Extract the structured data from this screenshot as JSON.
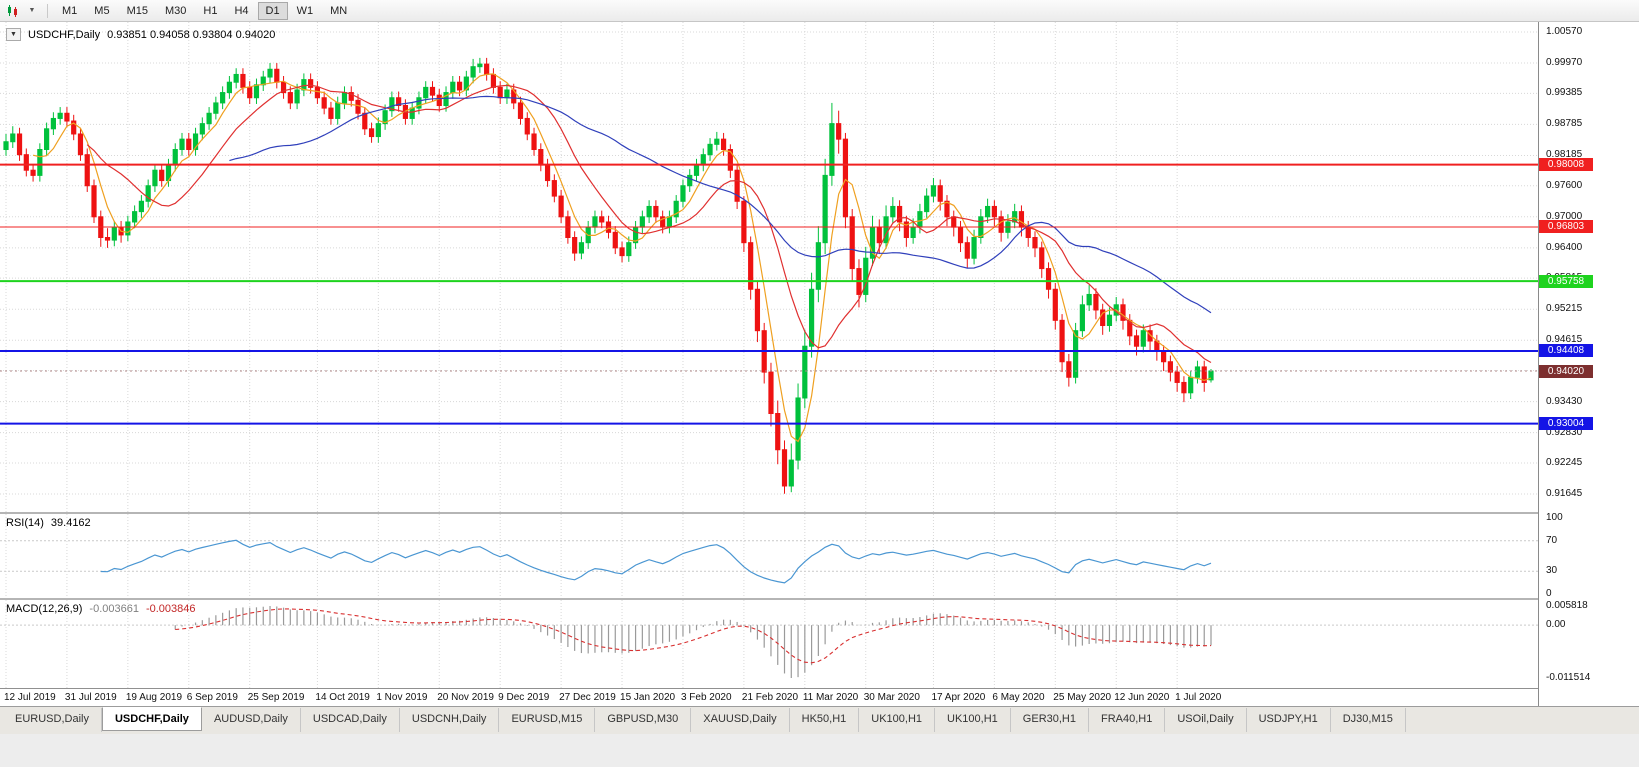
{
  "toolbar": {
    "timeframes": [
      "M1",
      "M5",
      "M15",
      "M30",
      "H1",
      "H4",
      "D1",
      "W1",
      "MN"
    ],
    "active_timeframe": "D1"
  },
  "chart": {
    "title": "USDCHF,Daily",
    "ohlc_text": "0.93851 0.94058 0.93804 0.94020"
  },
  "indicators": {
    "rsi": {
      "label": "RSI(14)",
      "value": "39.4162",
      "axis": [
        "100",
        "70",
        "30",
        "0"
      ],
      "line_color": "#4a96d2"
    },
    "macd": {
      "label": "MACD(12,26,9)",
      "value_main": "-0.003661",
      "value_signal": "-0.003846",
      "axis_max": "0.005818",
      "axis_zero": "0.00",
      "axis_min": "-0.011514",
      "hist_color": "#9a9a9a",
      "signal_color": "#d83030"
    }
  },
  "price_axis_ticks": [
    "1.00570",
    "0.99970",
    "0.99385",
    "0.98785",
    "0.98185",
    "0.97600",
    "0.97000",
    "0.96400",
    "0.95815",
    "0.95215",
    "0.94615",
    "0.94030",
    "0.93430",
    "0.92830",
    "0.92245",
    "0.91645"
  ],
  "levels": [
    {
      "label": "0.98008",
      "price": 0.98008,
      "color": "#f02020",
      "width": 2
    },
    {
      "label": "0.96803",
      "price": 0.96803,
      "color": "#f02020",
      "width": 1
    },
    {
      "label": "0.95758",
      "price": 0.95758,
      "color": "#1ed31e",
      "width": 2
    },
    {
      "label": "0.94408",
      "price": 0.94408,
      "color": "#1414e6",
      "width": 2
    },
    {
      "label": "0.93004",
      "price": 0.93004,
      "color": "#1414e6",
      "width": 2
    }
  ],
  "current_price": {
    "label": "0.94020",
    "price": 0.9402,
    "box_color": "#7d2f2f"
  },
  "date_ticks": [
    "12 Jul 2019",
    "31 Jul 2019",
    "19 Aug 2019",
    "6 Sep 2019",
    "25 Sep 2019",
    "14 Oct 2019",
    "1 Nov 2019",
    "20 Nov 2019",
    "9 Dec 2019",
    "27 Dec 2019",
    "15 Jan 2020",
    "3 Feb 2020",
    "21 Feb 2020",
    "11 Mar 2020",
    "30 Mar 2020",
    "17 Apr 2020",
    "6 May 2020",
    "25 May 2020",
    "12 Jun 2020",
    "1 Jul 2020"
  ],
  "tabs": [
    "EURUSD,Daily",
    "USDCHF,Daily",
    "AUDUSD,Daily",
    "USDCAD,Daily",
    "USDCNH,Daily",
    "EURUSD,M15",
    "GBPUSD,M30",
    "XAUUSD,Daily",
    "HK50,H1",
    "UK100,H1",
    "UK100,H1",
    "GER30,H1",
    "FRA40,H1",
    "USOil,Daily",
    "USDJPY,H1",
    "DJ30,M15"
  ],
  "active_tab": "USDCHF,Daily",
  "colors": {
    "bull": "#00c13c",
    "bear": "#ee1212",
    "grid": "#d8d8d8"
  },
  "chart_data": {
    "type": "candlestick",
    "symbol": "USDCHF",
    "timeframe": "Daily",
    "ylim": [
      0.91645,
      1.0057
    ],
    "x_range": [
      "12 Jul 2019",
      "10 Jul 2020"
    ],
    "moving_averages": [
      {
        "period": 5,
        "color": "#efa020"
      },
      {
        "period": 13,
        "color": "#e03030"
      },
      {
        "period": 34,
        "color": "#3040bb"
      }
    ],
    "candles": [
      [
        0.983,
        0.986,
        0.9818,
        0.9845
      ],
      [
        0.9845,
        0.9875,
        0.9833,
        0.986
      ],
      [
        0.986,
        0.9872,
        0.9808,
        0.982
      ],
      [
        0.982,
        0.9832,
        0.9778,
        0.979
      ],
      [
        0.979,
        0.9802,
        0.9768,
        0.978
      ],
      [
        0.978,
        0.9842,
        0.9768,
        0.983
      ],
      [
        0.983,
        0.9882,
        0.9818,
        0.987
      ],
      [
        0.987,
        0.9902,
        0.9858,
        0.989
      ],
      [
        0.989,
        0.9912,
        0.9878,
        0.99
      ],
      [
        0.99,
        0.9912,
        0.9873,
        0.9885
      ],
      [
        0.9885,
        0.9897,
        0.9848,
        0.986
      ],
      [
        0.986,
        0.9872,
        0.9808,
        0.982
      ],
      [
        0.982,
        0.9832,
        0.9748,
        0.976
      ],
      [
        0.976,
        0.9772,
        0.9688,
        0.97
      ],
      [
        0.97,
        0.9712,
        0.9642,
        0.966
      ],
      [
        0.966,
        0.9678,
        0.964,
        0.9655
      ],
      [
        0.9655,
        0.9692,
        0.9643,
        0.968
      ],
      [
        0.968,
        0.9692,
        0.965,
        0.9665
      ],
      [
        0.9665,
        0.9702,
        0.9653,
        0.969
      ],
      [
        0.969,
        0.9722,
        0.9678,
        0.971
      ],
      [
        0.971,
        0.9742,
        0.9698,
        0.973
      ],
      [
        0.973,
        0.9772,
        0.9718,
        0.976
      ],
      [
        0.976,
        0.9802,
        0.9748,
        0.979
      ],
      [
        0.979,
        0.9802,
        0.9758,
        0.977
      ],
      [
        0.977,
        0.9812,
        0.9758,
        0.98
      ],
      [
        0.98,
        0.9842,
        0.9788,
        0.983
      ],
      [
        0.983,
        0.9862,
        0.9818,
        0.985
      ],
      [
        0.985,
        0.9862,
        0.9818,
        0.983
      ],
      [
        0.983,
        0.9872,
        0.9818,
        0.986
      ],
      [
        0.986,
        0.9892,
        0.9848,
        0.988
      ],
      [
        0.988,
        0.9912,
        0.9868,
        0.99
      ],
      [
        0.99,
        0.9932,
        0.9888,
        0.992
      ],
      [
        0.992,
        0.9952,
        0.9908,
        0.994
      ],
      [
        0.994,
        0.9972,
        0.9928,
        0.996
      ],
      [
        0.996,
        0.9987,
        0.9948,
        0.9975
      ],
      [
        0.9975,
        0.9987,
        0.9938,
        0.995
      ],
      [
        0.995,
        0.9962,
        0.9918,
        0.993
      ],
      [
        0.993,
        0.9967,
        0.9918,
        0.9955
      ],
      [
        0.9955,
        0.9982,
        0.9943,
        0.997
      ],
      [
        0.997,
        0.9997,
        0.9958,
        0.9985
      ],
      [
        0.9985,
        0.9997,
        0.9948,
        0.996
      ],
      [
        0.996,
        0.9972,
        0.9928,
        0.994
      ],
      [
        0.994,
        0.9952,
        0.9908,
        0.992
      ],
      [
        0.992,
        0.9957,
        0.9908,
        0.9945
      ],
      [
        0.9945,
        0.9977,
        0.9933,
        0.9965
      ],
      [
        0.9965,
        0.9977,
        0.9938,
        0.995
      ],
      [
        0.995,
        0.9962,
        0.9918,
        0.993
      ],
      [
        0.993,
        0.9942,
        0.9898,
        0.991
      ],
      [
        0.991,
        0.9922,
        0.9878,
        0.989
      ],
      [
        0.989,
        0.9932,
        0.9878,
        0.992
      ],
      [
        0.992,
        0.9952,
        0.9908,
        0.994
      ],
      [
        0.994,
        0.9952,
        0.9913,
        0.9925
      ],
      [
        0.9925,
        0.9937,
        0.9888,
        0.99
      ],
      [
        0.99,
        0.9912,
        0.9858,
        0.987
      ],
      [
        0.987,
        0.9882,
        0.9843,
        0.9855
      ],
      [
        0.9855,
        0.9892,
        0.9843,
        0.988
      ],
      [
        0.988,
        0.9917,
        0.9868,
        0.9905
      ],
      [
        0.9905,
        0.9942,
        0.9893,
        0.993
      ],
      [
        0.993,
        0.9942,
        0.9903,
        0.9915
      ],
      [
        0.9915,
        0.9927,
        0.9878,
        0.989
      ],
      [
        0.989,
        0.9922,
        0.9878,
        0.991
      ],
      [
        0.991,
        0.9942,
        0.9898,
        0.993
      ],
      [
        0.993,
        0.9962,
        0.9918,
        0.995
      ],
      [
        0.995,
        0.9962,
        0.9923,
        0.9935
      ],
      [
        0.9935,
        0.9947,
        0.9903,
        0.9915
      ],
      [
        0.9915,
        0.9952,
        0.9903,
        0.994
      ],
      [
        0.994,
        0.9972,
        0.9928,
        0.996
      ],
      [
        0.996,
        0.9972,
        0.9933,
        0.9945
      ],
      [
        0.9945,
        0.9982,
        0.9933,
        0.997
      ],
      [
        0.997,
        1.0005,
        0.9958,
        0.999
      ],
      [
        0.999,
        1.0007,
        0.9978,
        0.9995
      ],
      [
        0.9995,
        1.0007,
        0.9963,
        0.9975
      ],
      [
        0.9975,
        0.9987,
        0.9938,
        0.995
      ],
      [
        0.995,
        0.9962,
        0.9918,
        0.993
      ],
      [
        0.993,
        0.9957,
        0.9918,
        0.9945
      ],
      [
        0.9945,
        0.9957,
        0.9908,
        0.992
      ],
      [
        0.992,
        0.9932,
        0.9878,
        0.989
      ],
      [
        0.989,
        0.9902,
        0.9848,
        0.986
      ],
      [
        0.986,
        0.9872,
        0.9818,
        0.983
      ],
      [
        0.983,
        0.9842,
        0.9788,
        0.98
      ],
      [
        0.98,
        0.9812,
        0.9758,
        0.977
      ],
      [
        0.977,
        0.9782,
        0.9728,
        0.974
      ],
      [
        0.974,
        0.9752,
        0.9688,
        0.97
      ],
      [
        0.97,
        0.9712,
        0.9648,
        0.966
      ],
      [
        0.966,
        0.9672,
        0.9615,
        0.963
      ],
      [
        0.963,
        0.9662,
        0.9618,
        0.965
      ],
      [
        0.965,
        0.9692,
        0.9638,
        0.968
      ],
      [
        0.968,
        0.9712,
        0.9668,
        0.97
      ],
      [
        0.97,
        0.9712,
        0.9678,
        0.969
      ],
      [
        0.969,
        0.9702,
        0.9658,
        0.967
      ],
      [
        0.967,
        0.9682,
        0.9628,
        0.964
      ],
      [
        0.964,
        0.9652,
        0.9612,
        0.9625
      ],
      [
        0.9625,
        0.9662,
        0.9613,
        0.965
      ],
      [
        0.965,
        0.9692,
        0.9638,
        0.968
      ],
      [
        0.968,
        0.9712,
        0.9668,
        0.97
      ],
      [
        0.97,
        0.9732,
        0.9688,
        0.972
      ],
      [
        0.972,
        0.9732,
        0.9688,
        0.97
      ],
      [
        0.97,
        0.9712,
        0.9668,
        0.968
      ],
      [
        0.968,
        0.9712,
        0.9668,
        0.97
      ],
      [
        0.97,
        0.9742,
        0.9688,
        0.973
      ],
      [
        0.973,
        0.9772,
        0.9718,
        0.976
      ],
      [
        0.976,
        0.9792,
        0.9748,
        0.978
      ],
      [
        0.978,
        0.9812,
        0.9768,
        0.98
      ],
      [
        0.98,
        0.9832,
        0.9788,
        0.982
      ],
      [
        0.982,
        0.9852,
        0.9808,
        0.984
      ],
      [
        0.984,
        0.9864,
        0.9828,
        0.985
      ],
      [
        0.985,
        0.9862,
        0.9818,
        0.983
      ],
      [
        0.983,
        0.984,
        0.9775,
        0.979
      ],
      [
        0.979,
        0.98,
        0.9715,
        0.973
      ],
      [
        0.973,
        0.974,
        0.9632,
        0.965
      ],
      [
        0.965,
        0.9662,
        0.954,
        0.956
      ],
      [
        0.956,
        0.9575,
        0.9458,
        0.948
      ],
      [
        0.948,
        0.9495,
        0.9378,
        0.94
      ],
      [
        0.94,
        0.9418,
        0.9295,
        0.932
      ],
      [
        0.932,
        0.9345,
        0.9222,
        0.925
      ],
      [
        0.925,
        0.9268,
        0.9165,
        0.918
      ],
      [
        0.918,
        0.9262,
        0.9168,
        0.923
      ],
      [
        0.923,
        0.9378,
        0.9212,
        0.935
      ],
      [
        0.935,
        0.9482,
        0.933,
        0.945
      ],
      [
        0.945,
        0.9592,
        0.9428,
        0.956
      ],
      [
        0.956,
        0.9682,
        0.9535,
        0.965
      ],
      [
        0.965,
        0.9812,
        0.9628,
        0.978
      ],
      [
        0.978,
        0.992,
        0.976,
        0.988
      ],
      [
        0.988,
        0.9905,
        0.9822,
        0.985
      ],
      [
        0.985,
        0.9862,
        0.9678,
        0.97
      ],
      [
        0.97,
        0.9715,
        0.9575,
        0.96
      ],
      [
        0.96,
        0.9618,
        0.9525,
        0.955
      ],
      [
        0.955,
        0.9642,
        0.9535,
        0.962
      ],
      [
        0.962,
        0.9702,
        0.9605,
        0.968
      ],
      [
        0.968,
        0.9695,
        0.9628,
        0.965
      ],
      [
        0.965,
        0.9722,
        0.9638,
        0.97
      ],
      [
        0.97,
        0.9738,
        0.9688,
        0.972
      ],
      [
        0.972,
        0.9732,
        0.9672,
        0.969
      ],
      [
        0.969,
        0.9702,
        0.9642,
        0.966
      ],
      [
        0.966,
        0.9697,
        0.9648,
        0.968
      ],
      [
        0.968,
        0.9725,
        0.9668,
        0.971
      ],
      [
        0.971,
        0.9755,
        0.9698,
        0.974
      ],
      [
        0.974,
        0.9775,
        0.9728,
        0.976
      ],
      [
        0.976,
        0.9772,
        0.9712,
        0.973
      ],
      [
        0.973,
        0.9742,
        0.9682,
        0.97
      ],
      [
        0.97,
        0.9712,
        0.9662,
        0.968
      ],
      [
        0.968,
        0.9692,
        0.9632,
        0.965
      ],
      [
        0.965,
        0.9662,
        0.9602,
        0.962
      ],
      [
        0.962,
        0.9675,
        0.9608,
        0.966
      ],
      [
        0.966,
        0.9715,
        0.9648,
        0.97
      ],
      [
        0.97,
        0.9735,
        0.9688,
        0.972
      ],
      [
        0.972,
        0.9732,
        0.9682,
        0.97
      ],
      [
        0.97,
        0.9712,
        0.9652,
        0.967
      ],
      [
        0.967,
        0.9705,
        0.9658,
        0.969
      ],
      [
        0.969,
        0.9725,
        0.9678,
        0.971
      ],
      [
        0.971,
        0.9722,
        0.9662,
        0.968
      ],
      [
        0.968,
        0.9692,
        0.9642,
        0.966
      ],
      [
        0.966,
        0.9672,
        0.9622,
        0.964
      ],
      [
        0.964,
        0.9652,
        0.9582,
        0.96
      ],
      [
        0.96,
        0.9612,
        0.9542,
        0.956
      ],
      [
        0.956,
        0.9572,
        0.9482,
        0.95
      ],
      [
        0.95,
        0.9512,
        0.94,
        0.942
      ],
      [
        0.942,
        0.9435,
        0.9372,
        0.939
      ],
      [
        0.939,
        0.9495,
        0.9378,
        0.948
      ],
      [
        0.948,
        0.9548,
        0.9468,
        0.953
      ],
      [
        0.953,
        0.9568,
        0.9518,
        0.955
      ],
      [
        0.955,
        0.9562,
        0.9502,
        0.952
      ],
      [
        0.952,
        0.9532,
        0.9472,
        0.949
      ],
      [
        0.949,
        0.9525,
        0.9478,
        0.951
      ],
      [
        0.951,
        0.9545,
        0.9498,
        0.953
      ],
      [
        0.953,
        0.9542,
        0.9482,
        0.95
      ],
      [
        0.95,
        0.9512,
        0.9452,
        0.947
      ],
      [
        0.947,
        0.9482,
        0.9432,
        0.945
      ],
      [
        0.945,
        0.9492,
        0.9438,
        0.948
      ],
      [
        0.948,
        0.9492,
        0.9442,
        0.946
      ],
      [
        0.946,
        0.9472,
        0.9422,
        0.944
      ],
      [
        0.944,
        0.9452,
        0.9402,
        0.942
      ],
      [
        0.942,
        0.9432,
        0.9382,
        0.94
      ],
      [
        0.94,
        0.9412,
        0.9362,
        0.938
      ],
      [
        0.938,
        0.9392,
        0.9342,
        0.936
      ],
      [
        0.936,
        0.9402,
        0.9348,
        0.939
      ],
      [
        0.939,
        0.9422,
        0.9378,
        0.941
      ],
      [
        0.941,
        0.9422,
        0.9362,
        0.938
      ],
      [
        0.9385,
        0.9406,
        0.938,
        0.9402
      ]
    ]
  }
}
